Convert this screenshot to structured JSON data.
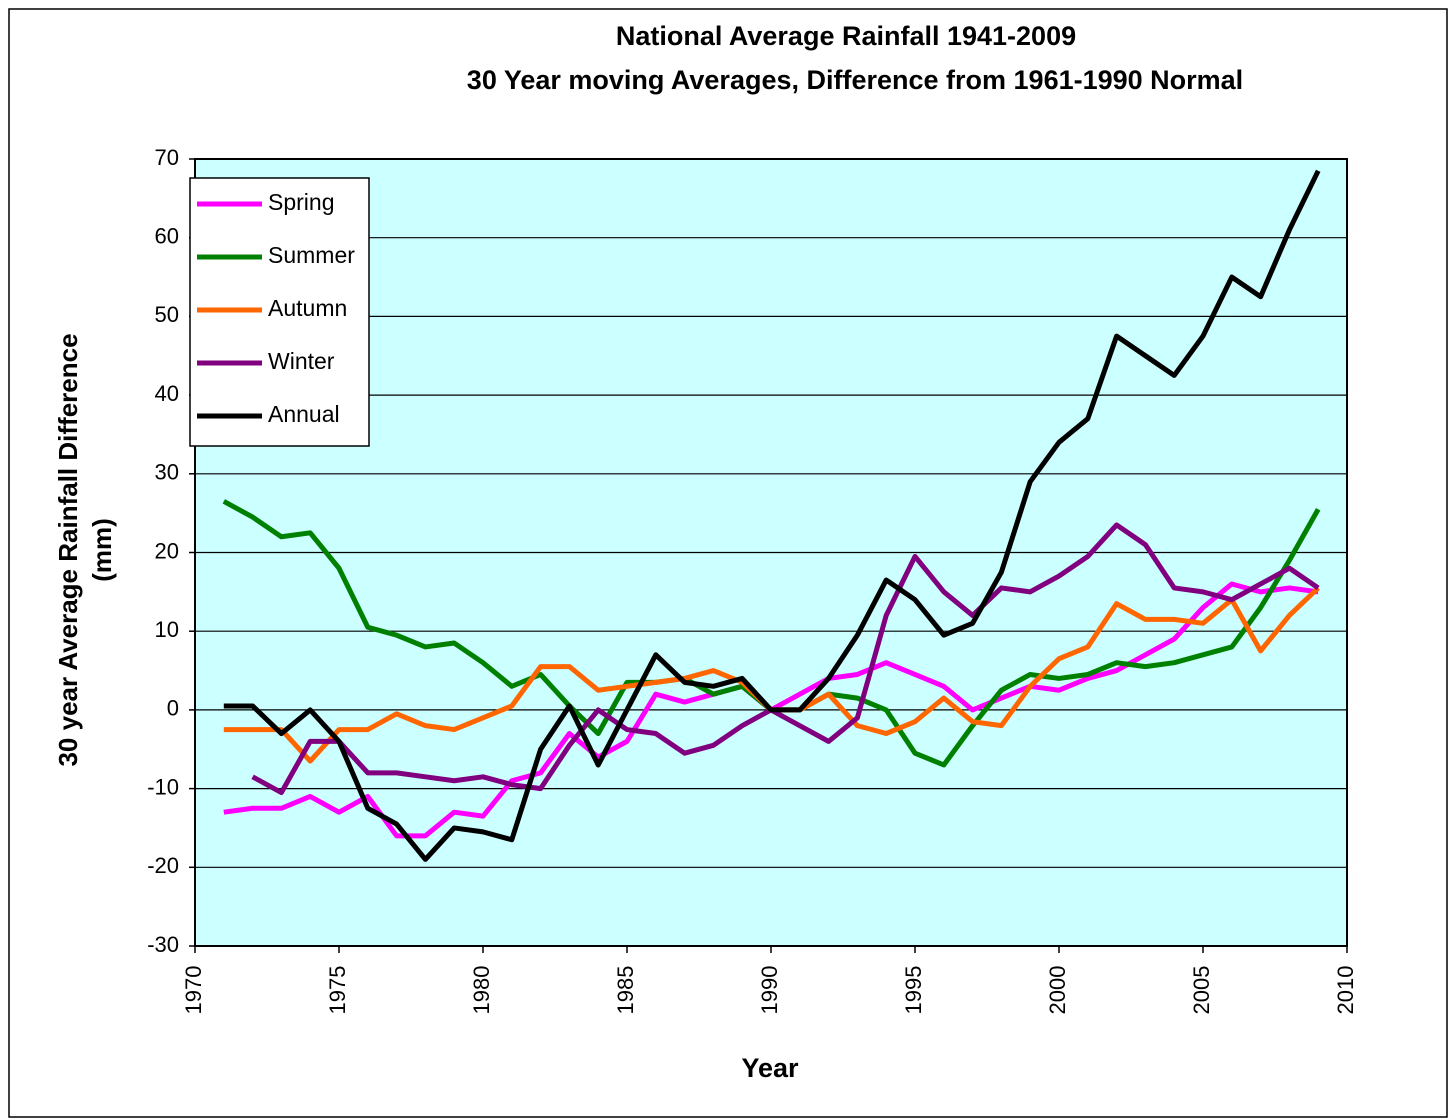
{
  "chart_data": {
    "type": "line",
    "title": "National Average Rainfall 1941-2009",
    "subtitle": "30 Year moving Averages,   Difference from 1961-1990 Normal",
    "ylabel": "30 year Average Rainfall Difference",
    "ylabel2": "(mm)",
    "xlabel": "Year",
    "x": [
      1971,
      1972,
      1973,
      1974,
      1975,
      1976,
      1977,
      1978,
      1979,
      1980,
      1981,
      1982,
      1983,
      1984,
      1985,
      1986,
      1987,
      1988,
      1989,
      1990,
      1991,
      1992,
      1993,
      1994,
      1995,
      1996,
      1997,
      1998,
      1999,
      2000,
      2001,
      2002,
      2003,
      2004,
      2005,
      2006,
      2007,
      2008,
      2009
    ],
    "series": [
      {
        "name": "Spring",
        "color": "#ff00ff",
        "values": [
          -13,
          -12.5,
          -12.5,
          -11,
          -13,
          -11,
          -16,
          -16,
          -13,
          -13.5,
          -9,
          -8,
          -3,
          -6,
          -4,
          2,
          1,
          2,
          3,
          0,
          2,
          4,
          4.5,
          6,
          4.5,
          3,
          0,
          1.5,
          3,
          2.5,
          4,
          5,
          7,
          9,
          13,
          16,
          15,
          15.5,
          15
        ]
      },
      {
        "name": "Summer",
        "color": "#008000",
        "values": [
          26.5,
          24.5,
          22,
          22.5,
          18,
          10.5,
          9.5,
          8,
          8.5,
          6,
          3,
          4.5,
          0.5,
          -3,
          3.5,
          3.5,
          4,
          2,
          3,
          0,
          0,
          2,
          1.5,
          0,
          -5.5,
          -7,
          -2,
          2.5,
          4.5,
          4,
          4.5,
          6,
          5.5,
          6,
          7,
          8,
          13,
          19,
          25.5
        ]
      },
      {
        "name": "Autumn",
        "color": "#ff6600",
        "values": [
          -2.5,
          -2.5,
          -2.5,
          -6.5,
          -2.5,
          -2.5,
          -0.5,
          -2,
          -2.5,
          -1,
          0.5,
          5.5,
          5.5,
          2.5,
          3,
          3.5,
          4,
          5,
          3.5,
          0,
          0,
          2,
          -2,
          -3,
          -1.5,
          1.5,
          -1.5,
          -2,
          3,
          6.5,
          8,
          13.5,
          11.5,
          11.5,
          11,
          14,
          7.5,
          12,
          15.5
        ]
      },
      {
        "name": "Winter",
        "color": "#800080",
        "values": [
          null,
          -8.5,
          -10.5,
          -4,
          -4,
          -8,
          -8,
          -8.5,
          -9,
          -8.5,
          -9.5,
          -10,
          -4.5,
          0,
          -2.5,
          -3,
          -5.5,
          -4.5,
          -2,
          0,
          -2,
          -4,
          -1,
          12,
          19.5,
          15,
          12,
          15.5,
          15,
          17,
          19.5,
          23.5,
          21,
          15.5,
          15,
          14,
          16,
          18,
          15.5
        ]
      },
      {
        "name": "Annual",
        "color": "#000000",
        "values": [
          0.5,
          0.5,
          -3,
          0,
          -4,
          -12.5,
          -14.5,
          -19,
          -15,
          -15.5,
          -16.5,
          -5,
          0.5,
          -7,
          0,
          7,
          3.5,
          3,
          4,
          0,
          0,
          4,
          9.5,
          16.5,
          14,
          9.5,
          11,
          17.5,
          29,
          34,
          37,
          47.5,
          45,
          42.5,
          47.5,
          55,
          52.5,
          61,
          68.5
        ]
      }
    ],
    "xlim": [
      1970,
      2010
    ],
    "xticks": [
      1970,
      1975,
      1980,
      1985,
      1990,
      1995,
      2000,
      2005,
      2010
    ],
    "ylim": [
      -30,
      70
    ],
    "yticks": [
      -30,
      -20,
      -10,
      0,
      10,
      20,
      30,
      40,
      50,
      60,
      70
    ],
    "grid": true,
    "legend": "top-left",
    "plot_background": "#ccffff"
  }
}
